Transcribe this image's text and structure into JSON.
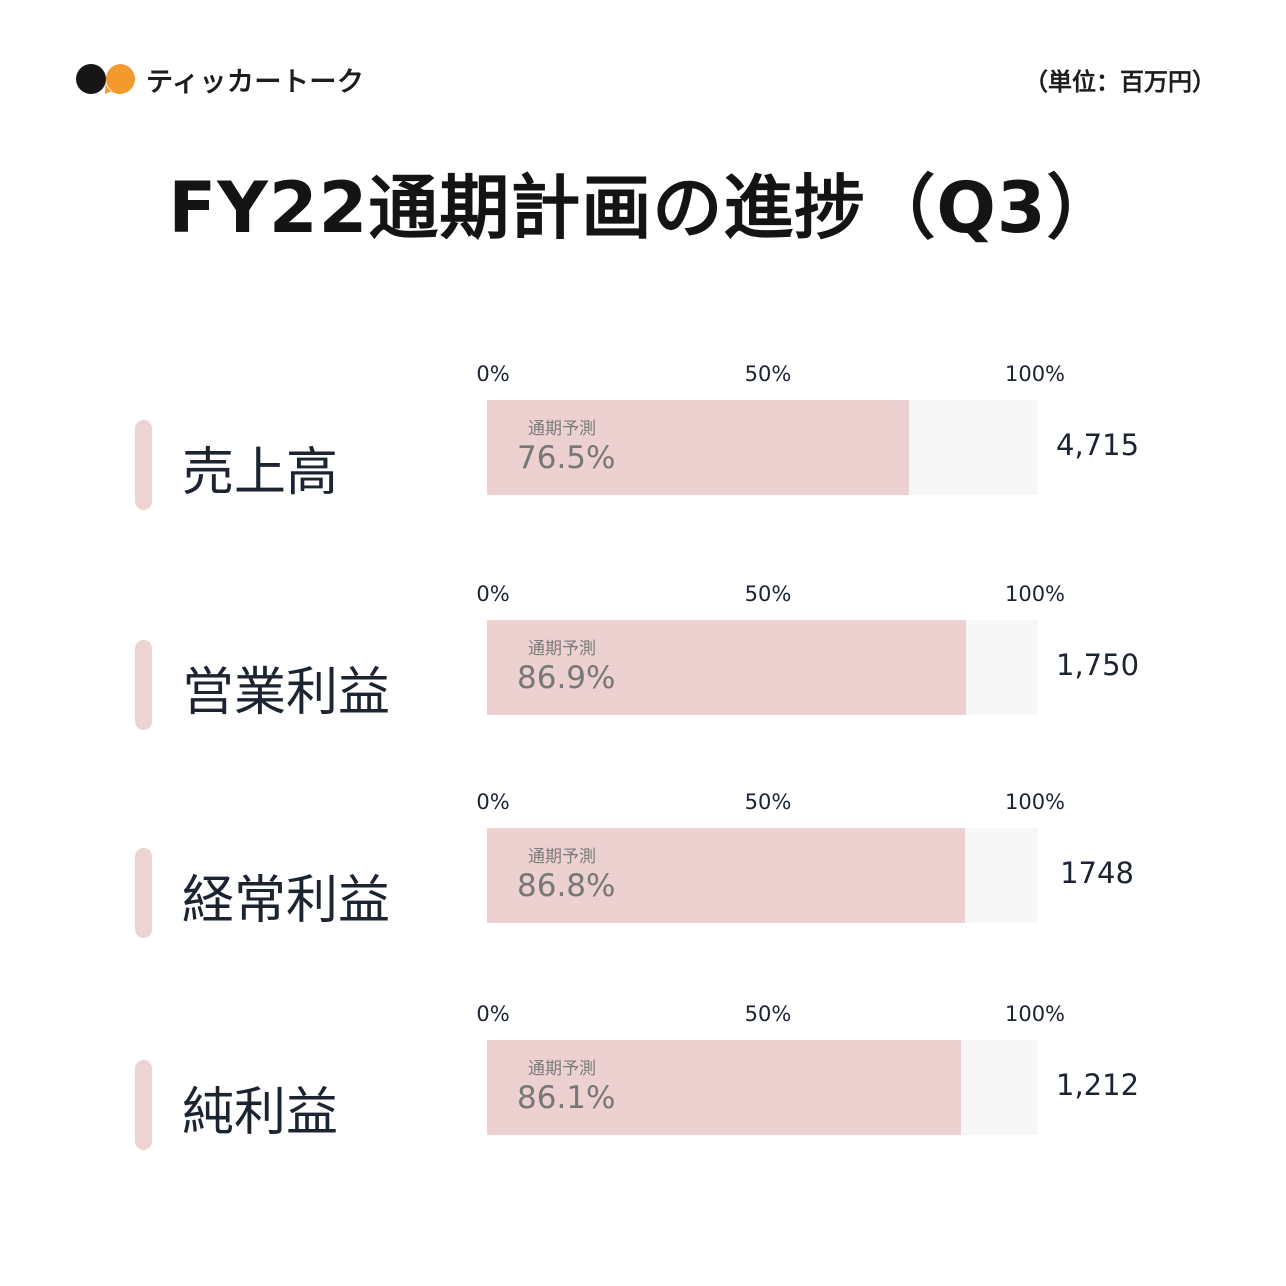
{
  "brand": {
    "name": "ティッカートーク",
    "logo_colors": [
      "#161616",
      "#f29a2e"
    ]
  },
  "unit_note": "（単位：百万円）",
  "title": "FY22通期計画の進捗（Q3）",
  "chart_data": {
    "type": "bar",
    "orientation": "horizontal",
    "title": "FY22通期計画の進捗（Q3）",
    "unit": "（単位：百万円）",
    "axis_ticks": [
      "0%",
      "50%",
      "100%"
    ],
    "xlim": [
      0,
      100
    ],
    "bar_caption": "通期予測",
    "fill_color": "#edd1d1",
    "track_color": "#f7f7f7",
    "accent_color": "#eed3d3",
    "categories": [
      "売上高",
      "営業利益",
      "経常利益",
      "純利益"
    ],
    "progress_percent": [
      76.5,
      86.9,
      86.8,
      86.1
    ],
    "progress_labels": [
      "76.5%",
      "86.9%",
      "86.8%",
      "86.1%"
    ],
    "amounts": [
      "4,715",
      "1,750",
      "1748",
      "1,212"
    ]
  }
}
